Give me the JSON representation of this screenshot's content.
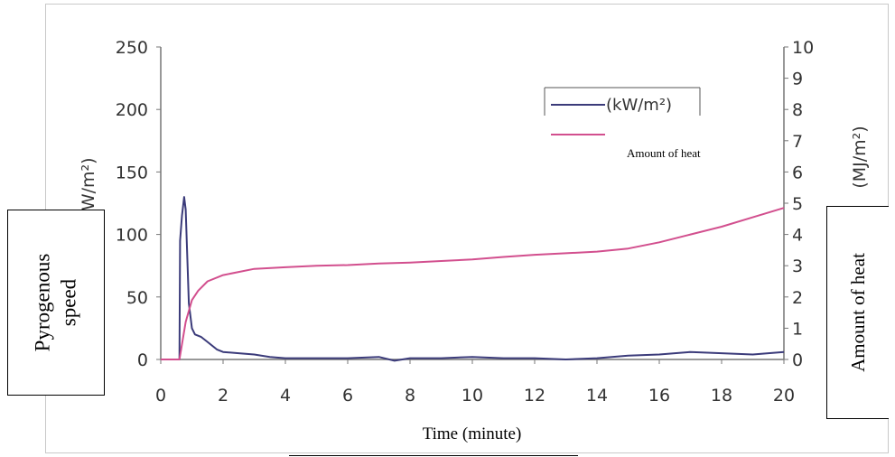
{
  "chart_data": {
    "type": "line",
    "x_range": [
      0,
      20
    ],
    "x_ticks": [
      0,
      2,
      4,
      6,
      8,
      10,
      12,
      14,
      16,
      18,
      20
    ],
    "y_left_range": [
      0,
      250
    ],
    "y_left_ticks": [
      0,
      50,
      100,
      150,
      200,
      250
    ],
    "y_right_range": [
      0,
      10
    ],
    "y_right_ticks": [
      0,
      1,
      2,
      3,
      4,
      5,
      6,
      7,
      8,
      9,
      10
    ],
    "y_left_unit": "(kW/m²)",
    "y_right_unit": "(MJ/m²)",
    "y_left_label_line1": "Pyrogenous",
    "y_left_label_line2": "speed",
    "y_right_label": "Amount of heat",
    "xlabel": "Time (minute)",
    "grid": false,
    "legend_position": "top-right",
    "legend": [
      {
        "label": "(kW/m²)",
        "color": "#3b3b7a"
      },
      {
        "label": "Amount of heat",
        "color": "#d24f8e"
      }
    ],
    "series": [
      {
        "name": "(kW/m²)",
        "axis": "left",
        "color": "#3b3b7a",
        "x": [
          0,
          0.5,
          0.6,
          0.62,
          0.68,
          0.75,
          0.8,
          0.9,
          1.0,
          1.1,
          1.3,
          1.5,
          1.8,
          2.0,
          2.5,
          3.0,
          3.5,
          4.0,
          5.0,
          6.0,
          7.0,
          7.5,
          8.0,
          9.0,
          10.0,
          11.0,
          12.0,
          13.0,
          14.0,
          15.0,
          16.0,
          17.0,
          18.0,
          19.0,
          20.0
        ],
        "y": [
          0,
          0,
          0,
          95,
          115,
          130,
          120,
          45,
          25,
          20,
          18,
          14,
          8,
          6,
          5,
          4,
          2,
          1,
          1,
          1,
          2,
          -1,
          1,
          1,
          2,
          1,
          1,
          0,
          1,
          3,
          4,
          6,
          5,
          4,
          6
        ]
      },
      {
        "name": "Amount of heat",
        "axis": "right",
        "color": "#d24f8e",
        "x": [
          0,
          0.6,
          0.8,
          1.0,
          1.2,
          1.5,
          2.0,
          2.5,
          3.0,
          4.0,
          5.0,
          6.0,
          7.0,
          8.0,
          9.0,
          10.0,
          11.0,
          12.0,
          13.0,
          14.0,
          15.0,
          16.0,
          17.0,
          18.0,
          19.0,
          20.0
        ],
        "y": [
          0,
          0,
          1.2,
          1.9,
          2.2,
          2.5,
          2.7,
          2.8,
          2.9,
          2.95,
          3.0,
          3.02,
          3.07,
          3.1,
          3.15,
          3.2,
          3.28,
          3.35,
          3.4,
          3.45,
          3.55,
          3.75,
          4.0,
          4.25,
          4.55,
          4.85
        ]
      }
    ]
  }
}
